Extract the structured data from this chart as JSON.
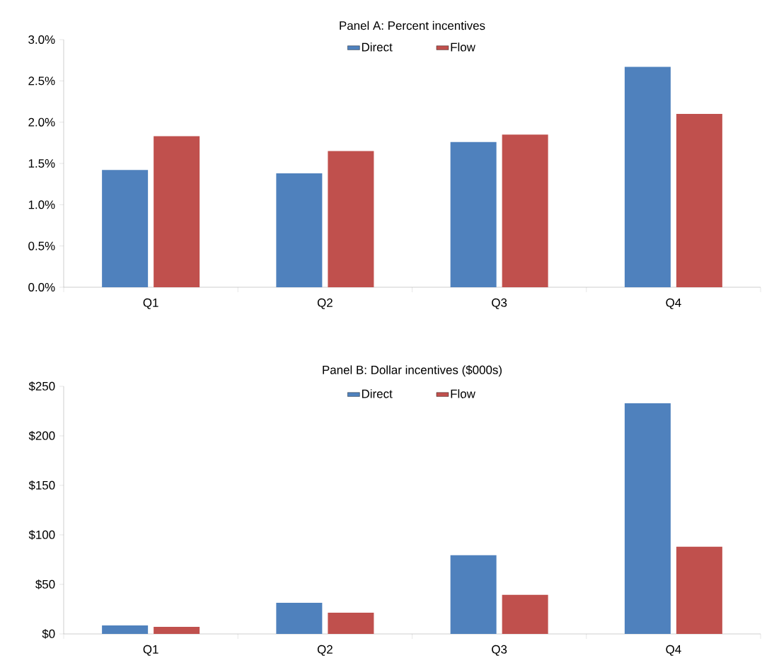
{
  "chart_data": [
    {
      "type": "bar",
      "title": "Panel A: Percent incentives",
      "categories": [
        "Q1",
        "Q2",
        "Q3",
        "Q4"
      ],
      "series": [
        {
          "name": "Direct",
          "color": "#4f81bd",
          "values": [
            1.42,
            1.38,
            1.76,
            2.67
          ]
        },
        {
          "name": "Flow",
          "color": "#c0504d",
          "values": [
            1.83,
            1.65,
            1.85,
            2.1
          ]
        }
      ],
      "ylim": [
        0,
        3
      ],
      "yticks": [
        {
          "value": 0,
          "label": "0.0%"
        },
        {
          "value": 0.5,
          "label": "0.5%"
        },
        {
          "value": 1,
          "label": "1.0%"
        },
        {
          "value": 1.5,
          "label": "1.5%"
        },
        {
          "value": 2,
          "label": "2.0%"
        },
        {
          "value": 2.5,
          "label": "2.5%"
        },
        {
          "value": 3,
          "label": "3.0%"
        }
      ],
      "legend": "top"
    },
    {
      "type": "bar",
      "title": "Panel B: Dollar incentives ($000s)",
      "categories": [
        "Q1",
        "Q2",
        "Q3",
        "Q4"
      ],
      "series": [
        {
          "name": "Direct",
          "color": "#4f81bd",
          "values": [
            8.6,
            31.5,
            79.5,
            232.8
          ]
        },
        {
          "name": "Flow",
          "color": "#c0504d",
          "values": [
            7.2,
            21.5,
            39.4,
            88.1
          ]
        }
      ],
      "ylim": [
        0,
        250
      ],
      "yticks": [
        {
          "value": 0,
          "label": "$0"
        },
        {
          "value": 50,
          "label": "$50"
        },
        {
          "value": 100,
          "label": "$100"
        },
        {
          "value": 150,
          "label": "$150"
        },
        {
          "value": 200,
          "label": "$200"
        },
        {
          "value": 250,
          "label": "$250"
        }
      ],
      "legend": "top"
    }
  ]
}
